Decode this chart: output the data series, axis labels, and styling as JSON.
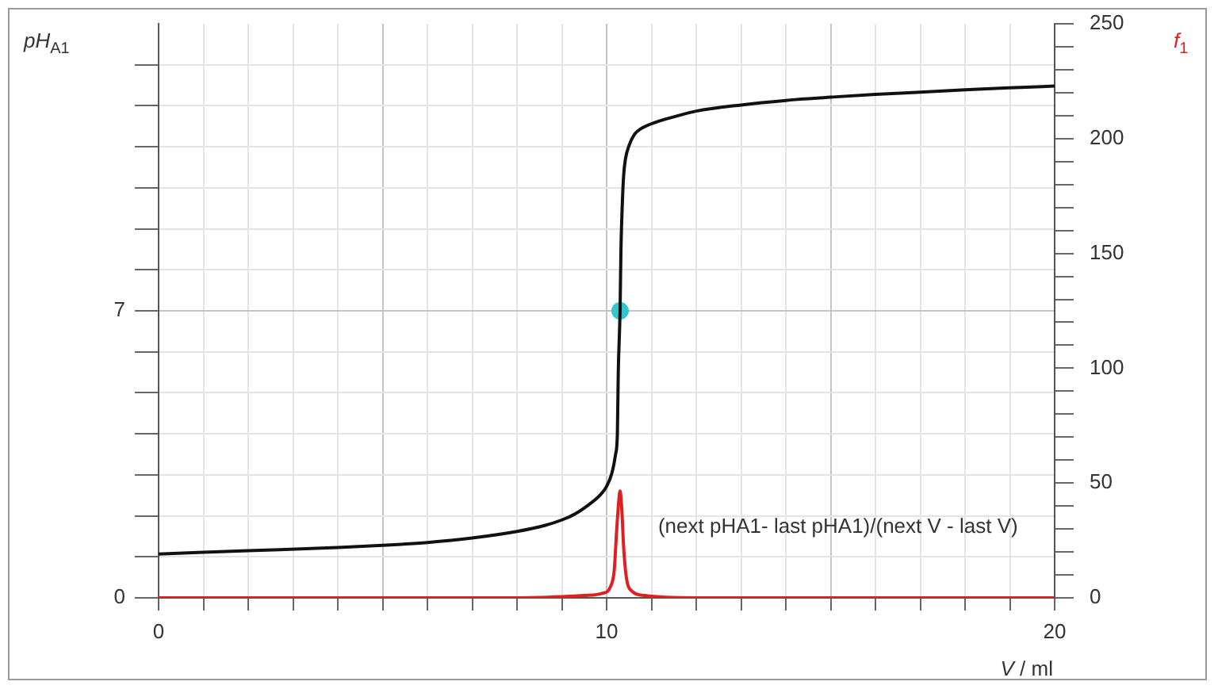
{
  "chart_data": {
    "type": "line",
    "xlabel": "V / ml",
    "ylabel": "pH$_{A1}$",
    "y2label": "f$_{1}$",
    "xlim": [
      0,
      20
    ],
    "xticks": [
      0,
      {
        "value": 1,
        "label": null
      },
      {
        "value": 2,
        "label": null
      },
      {
        "value": 3,
        "label": null
      },
      {
        "value": 4,
        "label": null
      },
      {
        "value": 5,
        "label": null
      },
      {
        "value": 6,
        "label": null
      },
      {
        "value": 7,
        "label": null
      },
      {
        "value": 8,
        "label": null
      },
      {
        "value": 9,
        "label": null
      },
      10,
      {
        "value": 11,
        "label": null
      },
      {
        "value": 12,
        "label": null
      },
      {
        "value": 13,
        "label": null
      },
      {
        "value": 14,
        "label": null
      },
      {
        "value": 15,
        "label": null
      },
      {
        "value": 16,
        "label": null
      },
      {
        "value": 17,
        "label": null
      },
      {
        "value": 18,
        "label": null
      },
      {
        "value": 19,
        "label": null
      },
      20
    ],
    "ylim": [
      0,
      14
    ],
    "yticks": [
      0,
      {
        "value": 1,
        "label": null
      },
      {
        "value": 2,
        "label": null
      },
      {
        "value": 3,
        "label": null
      },
      {
        "value": 4,
        "label": null
      },
      {
        "value": 5,
        "label": null
      },
      {
        "value": 6,
        "label": null
      },
      7,
      {
        "value": 8,
        "label": null
      },
      {
        "value": 9,
        "label": null
      },
      {
        "value": 10,
        "label": null
      },
      {
        "value": 11,
        "label": null
      },
      {
        "value": 12,
        "label": null
      },
      {
        "value": 13,
        "label": null
      }
    ],
    "y2lim": [
      0,
      250
    ],
    "y2ticks": [
      0,
      {
        "value": 10,
        "label": null
      },
      {
        "value": 20,
        "label": null
      },
      {
        "value": 30,
        "label": null
      },
      {
        "value": 40,
        "label": null
      },
      50,
      {
        "value": 60,
        "label": null
      },
      {
        "value": 70,
        "label": null
      },
      {
        "value": 80,
        "label": null
      },
      {
        "value": 90,
        "label": null
      },
      100,
      {
        "value": 110,
        "label": null
      },
      {
        "value": 120,
        "label": null
      },
      {
        "value": 130,
        "label": null
      },
      {
        "value": 140,
        "label": null
      },
      150,
      {
        "value": 160,
        "label": null
      },
      {
        "value": 170,
        "label": null
      },
      {
        "value": 180,
        "label": null
      },
      {
        "value": 190,
        "label": null
      },
      200,
      {
        "value": 210,
        "label": null
      },
      {
        "value": 220,
        "label": null
      },
      {
        "value": 230,
        "label": null
      },
      {
        "value": 240,
        "label": null
      },
      250
    ],
    "grid": true,
    "legend": false,
    "series": [
      {
        "type": "line",
        "color": "#111111",
        "x": [
          0,
          2,
          4,
          5,
          6,
          7,
          8,
          8.6,
          9,
          9.3,
          9.6,
          9.85,
          10.0,
          10.12,
          10.2,
          10.24,
          10.26,
          10.3,
          10.32,
          10.35,
          10.38,
          10.42,
          10.5,
          10.62,
          10.75,
          11.1,
          11.5,
          12,
          13,
          14,
          15,
          16,
          17,
          18,
          19,
          20
        ],
        "values": [
          1.07,
          1.15,
          1.23,
          1.28,
          1.35,
          1.46,
          1.62,
          1.76,
          1.9,
          2.05,
          2.27,
          2.5,
          2.72,
          3.05,
          3.5,
          4.0,
          5.5,
          7.0,
          8.5,
          9.6,
          10.3,
          10.7,
          11.03,
          11.3,
          11.43,
          11.6,
          11.73,
          11.87,
          12.02,
          12.13,
          12.21,
          12.28,
          12.33,
          12.39,
          12.44,
          12.48
        ]
      },
      {
        "type": "line",
        "name": "(next pHA1- last pHA1)/(next V - last V)",
        "color": "#e02020",
        "axis": "y2",
        "x": [
          0,
          8,
          9,
          9.5,
          9.91,
          10.09,
          10.17,
          10.22,
          10.27,
          10.3,
          10.34,
          10.38,
          10.44,
          10.56,
          10.85,
          12,
          20
        ],
        "values": [
          0,
          0,
          0.5,
          1,
          2,
          5,
          12,
          28,
          42,
          46.5,
          38,
          22,
          9,
          3,
          1,
          0,
          0
        ]
      },
      {
        "type": "scatter",
        "color": "#33c6cc",
        "marker": "circle",
        "x": [
          10.3
        ],
        "values": [
          7
        ]
      }
    ]
  }
}
